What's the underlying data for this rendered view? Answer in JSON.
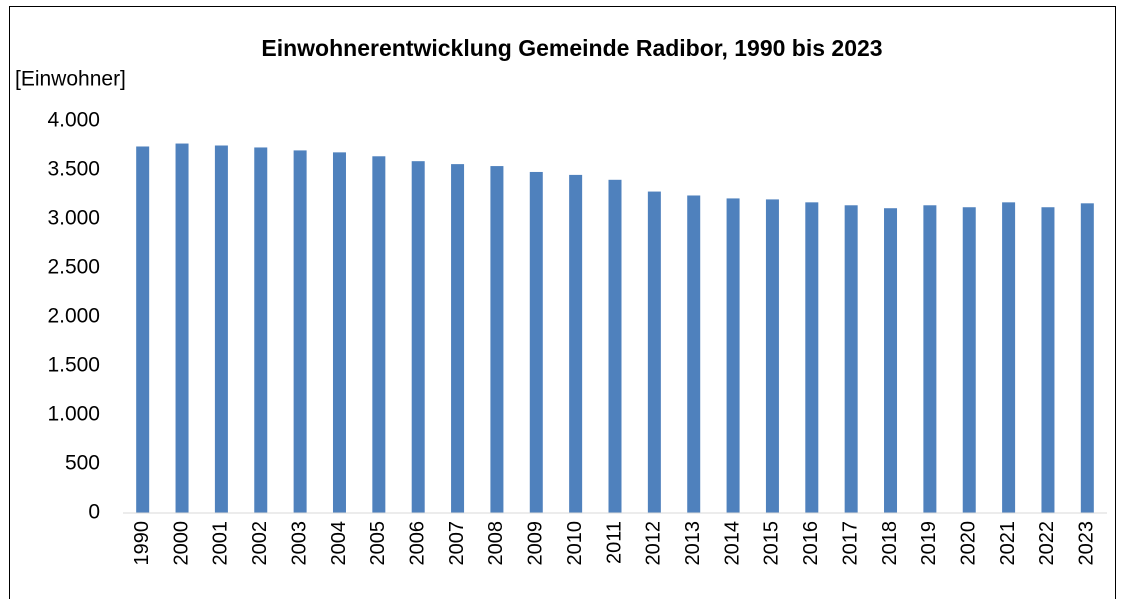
{
  "chart_data": {
    "type": "bar",
    "title": "Einwohnerentwicklung Gemeinde Radibor, 1990 bis 2023",
    "y_label": "[Einwohner]",
    "categories": [
      "1990",
      "2000",
      "2001",
      "2002",
      "2003",
      "2004",
      "2005",
      "2006",
      "2007",
      "2008",
      "2009",
      "2010",
      "2011",
      "2012",
      "2013",
      "2014",
      "2015",
      "2016",
      "2017",
      "2018",
      "2019",
      "2020",
      "2021",
      "2022",
      "2023"
    ],
    "values": [
      3740,
      3770,
      3750,
      3730,
      3700,
      3680,
      3640,
      3590,
      3560,
      3540,
      3480,
      3450,
      3400,
      3280,
      3240,
      3210,
      3200,
      3170,
      3140,
      3110,
      3140,
      3120,
      3170,
      3120,
      3160
    ],
    "color": "#4f81bd",
    "ylim": [
      0,
      4000
    ],
    "yticks": [
      0,
      500,
      {
        "value": 1000,
        "label": "1.000"
      },
      {
        "value": 1500,
        "label": "1.500"
      },
      {
        "value": 2000,
        "label": "2.000"
      },
      {
        "value": 2500,
        "label": "2.500"
      },
      {
        "value": 3000,
        "label": "3.000"
      },
      {
        "value": 3500,
        "label": "3.500"
      },
      {
        "value": 4000,
        "label": "4.000"
      }
    ],
    "grid": false
  }
}
